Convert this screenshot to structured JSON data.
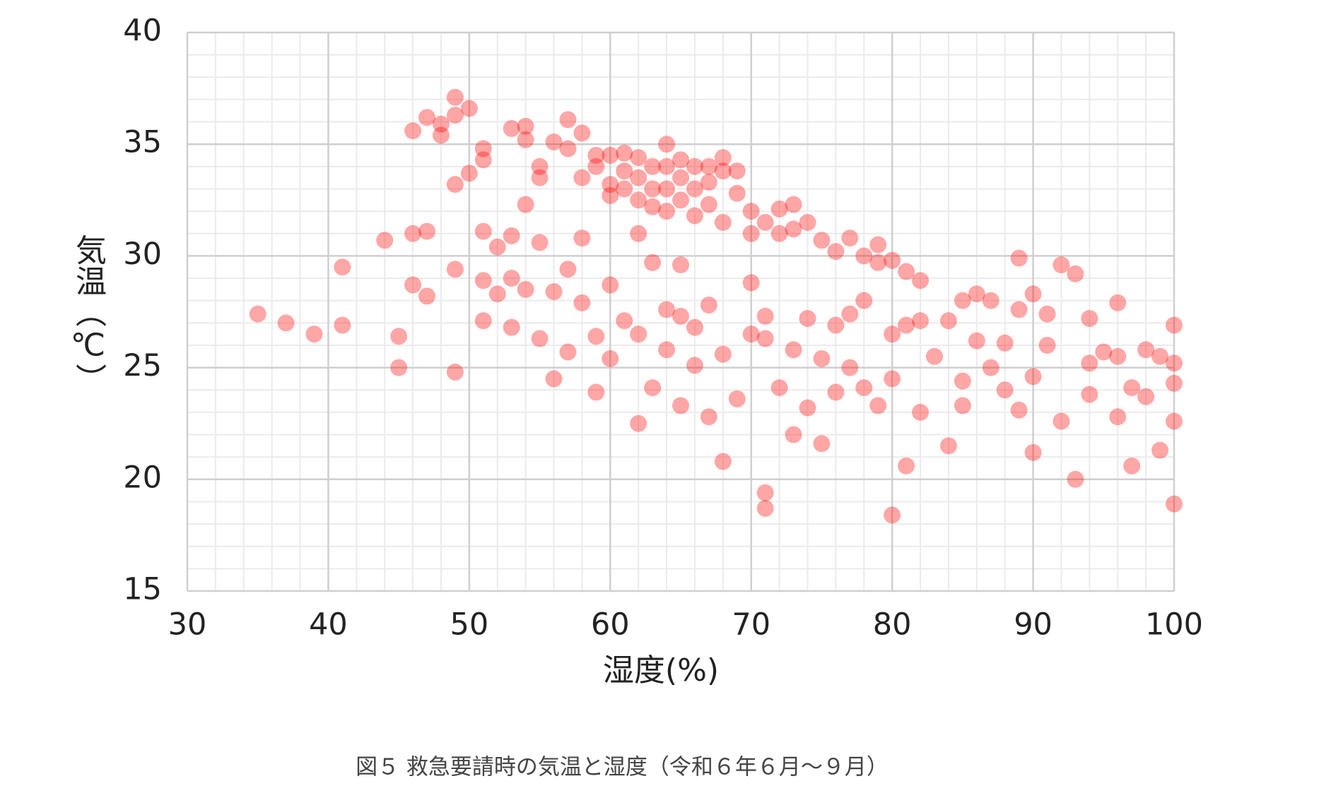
{
  "chart_data": {
    "type": "scatter",
    "title": "図５ 救急要請時の気温と湿度（令和６年６月～９月）",
    "x_label": "湿度(%)",
    "y_label": "気温（℃）",
    "color": "#ff0000",
    "opacity": 0.35,
    "grid": true,
    "xlim": [
      30,
      100
    ],
    "xticks": [
      30,
      40,
      50,
      60,
      70,
      80,
      90,
      100
    ],
    "ylim": [
      15,
      40
    ],
    "yticks": [
      15,
      20,
      25,
      30,
      35,
      40
    ],
    "x": [
      46,
      47,
      48,
      48,
      49,
      49,
      50,
      51,
      51,
      53,
      54,
      54,
      55,
      55,
      56,
      57,
      57,
      58,
      58,
      59,
      59,
      60,
      60,
      60,
      61,
      61,
      61,
      62,
      62,
      62,
      63,
      63,
      63,
      64,
      64,
      64,
      64,
      65,
      65,
      65,
      66,
      66,
      66,
      67,
      67,
      67,
      68,
      68,
      68,
      69,
      69,
      70,
      70,
      71,
      72,
      72,
      73,
      73,
      74,
      75,
      76,
      77,
      78,
      79,
      79,
      80,
      81,
      82,
      84,
      85,
      87,
      89,
      90,
      92,
      93,
      96,
      99,
      100,
      100,
      100,
      54,
      65,
      62,
      63,
      66,
      71,
      76,
      78,
      80,
      88,
      94,
      60,
      35,
      37,
      39,
      41,
      41,
      44,
      45,
      45,
      46,
      46,
      47,
      47,
      49,
      49,
      49,
      50,
      51,
      51,
      51,
      52,
      52,
      53,
      53,
      53,
      54,
      55,
      55,
      56,
      56,
      57,
      57,
      58,
      58,
      59,
      59,
      60,
      61,
      62,
      62,
      63,
      64,
      64,
      65,
      65,
      66,
      67,
      67,
      68,
      68,
      69,
      70,
      70,
      71,
      71,
      71,
      72,
      73,
      73,
      74,
      74,
      75,
      75,
      76,
      77,
      77,
      78,
      79,
      80,
      80,
      81,
      81,
      82,
      82,
      83,
      84,
      85,
      85,
      86,
      87,
      88,
      89,
      89,
      90,
      90,
      91,
      92,
      93,
      94,
      94,
      95,
      96,
      97,
      97,
      98,
      98,
      99,
      100,
      100,
      96,
      91,
      86
    ],
    "values": [
      35.6,
      36.2,
      35.9,
      35.4,
      37.1,
      36.3,
      36.6,
      34.8,
      34.3,
      35.7,
      35.8,
      35.2,
      34,
      33.5,
      35.1,
      36.1,
      34.8,
      35.5,
      33.5,
      34.5,
      34,
      34.5,
      33.2,
      32.7,
      34.6,
      33.8,
      33,
      34.4,
      33.5,
      32.5,
      34,
      33,
      32.2,
      35,
      34,
      33,
      32,
      34.3,
      33.5,
      32.5,
      34,
      33,
      31.8,
      34,
      33.3,
      32.3,
      34.4,
      33.8,
      31.5,
      33.8,
      32.8,
      32,
      31,
      31.5,
      32.1,
      31,
      32.3,
      31.2,
      31.5,
      30.7,
      30.2,
      30.8,
      30,
      30.5,
      29.7,
      29.8,
      29.3,
      28.9,
      27.1,
      28,
      28,
      29.9,
      28.3,
      29.6,
      29.2,
      27.9,
      25.5,
      26.9,
      24.3,
      25.2,
      32.3,
      29.6,
      31,
      29.7,
      26.8,
      27.3,
      26.9,
      24.1,
      26.5,
      26.1,
      25.2,
      28.7,
      27.4,
      27,
      26.5,
      29.5,
      26.9,
      30.7,
      26.4,
      25,
      28.7,
      31,
      31.1,
      28.2,
      33.2,
      29.4,
      24.8,
      33.7,
      31.1,
      28.9,
      27.1,
      30.4,
      28.3,
      29,
      30.9,
      26.8,
      28.5,
      30.6,
      26.3,
      28.4,
      24.5,
      29.4,
      25.7,
      27.9,
      30.8,
      26.4,
      23.9,
      25.4,
      27.1,
      26.5,
      22.5,
      24.1,
      27.6,
      25.8,
      23.3,
      27.3,
      25.1,
      27.8,
      22.8,
      20.8,
      25.6,
      23.6,
      26.5,
      28.8,
      26.3,
      19.4,
      18.7,
      24.1,
      25.8,
      22,
      27.2,
      23.2,
      25.4,
      21.6,
      23.9,
      27.4,
      25,
      28,
      23.3,
      18.4,
      24.5,
      26.9,
      20.6,
      23,
      27.1,
      25.5,
      21.5,
      24.4,
      23.3,
      26.2,
      25,
      24,
      23.1,
      27.6,
      24.6,
      21.2,
      26,
      22.6,
      20,
      27.2,
      23.8,
      25.7,
      22.8,
      24.1,
      20.6,
      25.8,
      23.7,
      21.3,
      22.6,
      18.9,
      25.5,
      27.4,
      28.3
    ]
  }
}
